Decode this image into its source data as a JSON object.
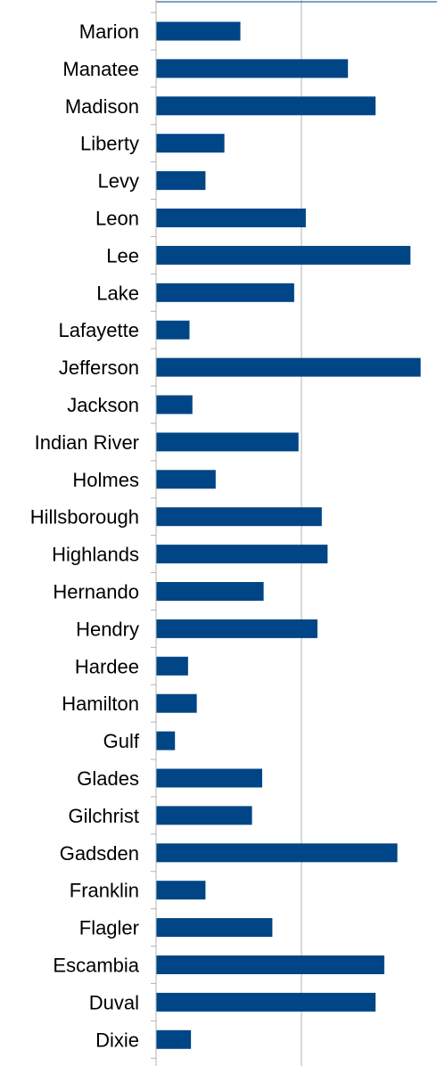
{
  "chart_data": {
    "type": "bar",
    "orientation": "horizontal",
    "categories": [
      "Marion",
      "Manatee",
      "Madison",
      "Liberty",
      "Levy",
      "Leon",
      "Lee",
      "Lake",
      "Lafayette",
      "Jefferson",
      "Jackson",
      "Indian River",
      "Holmes",
      "Hillsborough",
      "Highlands",
      "Hernando",
      "Hendry",
      "Hardee",
      "Hamilton",
      "Gulf",
      "Glades",
      "Gilchrist",
      "Gadsden",
      "Franklin",
      "Flagler",
      "Escambia",
      "Duval",
      "Dixie"
    ],
    "values": [
      0.58,
      1.32,
      1.51,
      0.47,
      0.34,
      1.03,
      1.75,
      0.95,
      0.23,
      1.82,
      0.25,
      0.98,
      0.41,
      1.14,
      1.18,
      0.74,
      1.11,
      0.22,
      0.28,
      0.13,
      0.73,
      0.66,
      1.66,
      0.34,
      0.8,
      1.57,
      1.51,
      0.24
    ],
    "xlim": [
      0,
      2
    ],
    "x_gridlines": [
      1,
      2
    ],
    "grid": true,
    "bar_color": "#004586",
    "gridline_color": "#b3b3b3",
    "axis_color": "#b3b3b3",
    "title": "",
    "xlabel": "",
    "ylabel": ""
  }
}
